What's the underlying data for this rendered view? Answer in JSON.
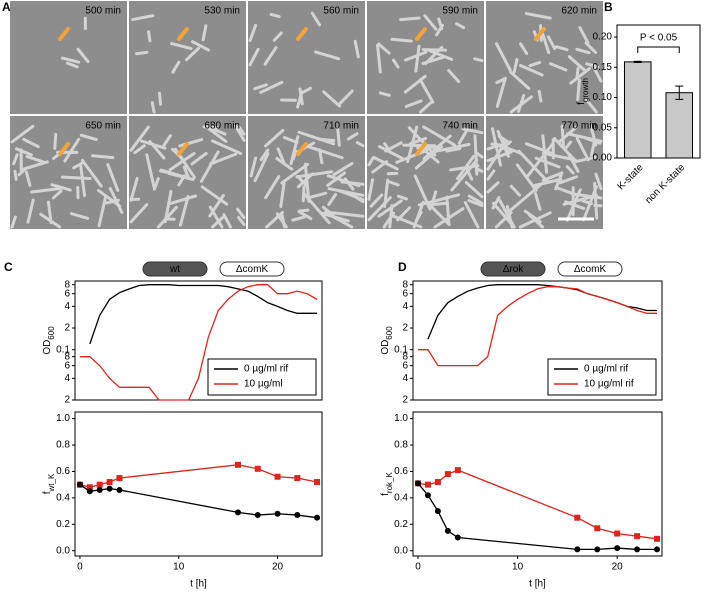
{
  "panels": {
    "A": {
      "label": "A",
      "frames": [
        "500 min",
        "530 min",
        "560 min",
        "590 min",
        "620 min",
        "650 min",
        "680 min",
        "710 min",
        "740 min",
        "770 min"
      ]
    }
  },
  "chart_data": [
    {
      "type": "bar",
      "panel": "B",
      "y_label": "f",
      "y_label_sub": "growth",
      "annotation": "P < 0.05",
      "categories": [
        "K-state",
        "non K-state"
      ],
      "values": [
        0.159,
        0.108
      ],
      "errors": [
        0.001,
        0.011
      ],
      "color": "#c8c8c8",
      "ylim": [
        0,
        0.22
      ],
      "yticks": [
        {
          "value": 0,
          "label": "0.00"
        },
        {
          "value": 0.05,
          "label": "0.05"
        },
        {
          "value": 0.1,
          "label": "0.10"
        },
        {
          "value": 0.15,
          "label": "0.15"
        },
        {
          "value": 0.2,
          "label": "0.20"
        }
      ]
    },
    {
      "type": "line",
      "panel": "C",
      "tags": [
        "wt",
        "ΔcomK"
      ],
      "y_label": "OD",
      "y_label_sub": "600",
      "log_y": true,
      "legend": "lower right",
      "x": [
        0,
        1,
        2,
        3,
        4,
        5,
        6,
        7,
        8,
        9,
        10,
        11,
        12,
        13,
        14,
        15,
        16,
        17,
        18,
        19,
        20,
        21,
        22,
        23,
        24
      ],
      "series": [
        {
          "name": "0 µg/ml rif",
          "color": "#000000",
          "values": [
            null,
            0.12,
            0.3,
            0.5,
            0.62,
            0.7,
            0.78,
            0.8,
            0.8,
            0.8,
            0.78,
            0.78,
            0.78,
            0.78,
            0.78,
            0.75,
            0.7,
            0.65,
            0.55,
            0.45,
            0.4,
            0.35,
            0.32,
            0.32,
            0.32
          ]
        },
        {
          "name": "10 µg/ml",
          "color": "#e0231c",
          "values": [
            0.08,
            0.08,
            0.06,
            0.04,
            0.03,
            0.03,
            0.03,
            0.03,
            0.02,
            0.02,
            0.02,
            0.02,
            0.04,
            0.15,
            0.35,
            0.5,
            0.65,
            0.75,
            0.8,
            0.8,
            0.6,
            0.6,
            0.65,
            0.6,
            0.5
          ]
        }
      ],
      "xlim": [
        -0.5,
        24.5
      ],
      "ylim": [
        0.02,
        0.9
      ],
      "yticks": [
        {
          "value": 0.02,
          "label": "2"
        },
        {
          "value": 0.04,
          "label": "4"
        },
        {
          "value": 0.06,
          "label": "6"
        },
        {
          "value": 0.08,
          "label": "8"
        },
        0.1,
        {
          "value": 0.2,
          "label": "2"
        },
        {
          "value": 0.4,
          "label": "4"
        },
        {
          "value": 0.6,
          "label": "6"
        },
        {
          "value": 0.8,
          "label": "8"
        }
      ]
    },
    {
      "type": "line",
      "panel": "C",
      "y_label": "f",
      "y_label_sub": "wt_K",
      "x_label": "t [h]",
      "x": [
        0,
        1,
        2,
        3,
        4,
        16,
        18,
        20,
        22,
        24
      ],
      "series": [
        {
          "color": "#e0231c",
          "marker": "square",
          "values": [
            0.5,
            0.48,
            0.5,
            0.52,
            0.55,
            0.65,
            0.62,
            0.56,
            0.55,
            0.52
          ]
        },
        {
          "color": "#000000",
          "marker": "circle",
          "values": [
            0.5,
            0.45,
            0.46,
            0.47,
            0.46,
            0.29,
            0.27,
            0.28,
            0.27,
            0.25
          ]
        }
      ],
      "xlim": [
        -0.5,
        24.5
      ],
      "ylim": [
        -0.04,
        1.05
      ],
      "xticks": [
        0,
        10,
        20
      ],
      "yticks": [
        {
          "value": 0,
          "label": "0.0"
        },
        {
          "value": 0.2,
          "label": "0.2"
        },
        {
          "value": 0.4,
          "label": "0.4"
        },
        {
          "value": 0.6,
          "label": "0.6"
        },
        {
          "value": 0.8,
          "label": "0.8"
        },
        {
          "value": 1,
          "label": "1.0"
        }
      ]
    },
    {
      "type": "line",
      "panel": "D",
      "tags": [
        "Δrok",
        "ΔcomK"
      ],
      "y_label": "OD",
      "y_label_sub": "600",
      "log_y": true,
      "legend": "lower right",
      "x": [
        0,
        1,
        2,
        3,
        4,
        5,
        6,
        7,
        8,
        9,
        10,
        11,
        12,
        13,
        14,
        15,
        16,
        17,
        18,
        19,
        20,
        21,
        22,
        23,
        24
      ],
      "series": [
        {
          "name": "0 µg/ml rif",
          "color": "#000000",
          "values": [
            null,
            0.14,
            0.3,
            0.45,
            0.55,
            0.65,
            0.72,
            0.78,
            0.8,
            0.8,
            0.8,
            0.8,
            0.8,
            0.78,
            0.75,
            0.72,
            0.68,
            0.6,
            0.55,
            0.5,
            0.45,
            0.4,
            0.38,
            0.35,
            0.35
          ]
        },
        {
          "name": "10 µg/ml rif",
          "color": "#e0231c",
          "values": [
            0.1,
            0.1,
            0.06,
            0.06,
            0.06,
            0.06,
            0.06,
            0.08,
            0.3,
            0.4,
            0.5,
            0.6,
            0.7,
            0.75,
            0.75,
            0.72,
            0.7,
            0.6,
            0.55,
            0.5,
            0.45,
            0.4,
            0.35,
            0.32,
            0.32
          ]
        }
      ],
      "xlim": [
        -0.5,
        24.5
      ],
      "ylim": [
        0.02,
        0.9
      ],
      "yticks": [
        {
          "value": 0.02,
          "label": "2"
        },
        {
          "value": 0.04,
          "label": "4"
        },
        {
          "value": 0.06,
          "label": "6"
        },
        {
          "value": 0.08,
          "label": "8"
        },
        0.1,
        {
          "value": 0.2,
          "label": "2"
        },
        {
          "value": 0.4,
          "label": "4"
        },
        {
          "value": 0.6,
          "label": "6"
        },
        {
          "value": 0.8,
          "label": "8"
        }
      ]
    },
    {
      "type": "line",
      "panel": "D",
      "y_label": "f",
      "y_label_sub": "rok_K",
      "x_label": "t [h]",
      "x": [
        0,
        1,
        2,
        3,
        4,
        16,
        18,
        20,
        22,
        24
      ],
      "series": [
        {
          "color": "#e0231c",
          "marker": "square",
          "values": [
            0.51,
            0.5,
            0.52,
            0.58,
            0.61,
            0.25,
            0.17,
            0.13,
            0.11,
            0.09
          ]
        },
        {
          "color": "#000000",
          "marker": "circle",
          "values": [
            0.51,
            0.42,
            0.3,
            0.15,
            0.1,
            0.01,
            0.01,
            0.02,
            0.01,
            0.01
          ]
        }
      ],
      "xlim": [
        -0.5,
        24.5
      ],
      "ylim": [
        -0.04,
        1.05
      ],
      "xticks": [
        0,
        10,
        20
      ],
      "yticks": [
        {
          "value": 0,
          "label": "0.0"
        },
        {
          "value": 0.2,
          "label": "0.2"
        },
        {
          "value": 0.4,
          "label": "0.4"
        },
        {
          "value": 0.6,
          "label": "0.6"
        },
        {
          "value": 0.8,
          "label": "0.8"
        },
        {
          "value": 1,
          "label": "1.0"
        }
      ]
    }
  ]
}
